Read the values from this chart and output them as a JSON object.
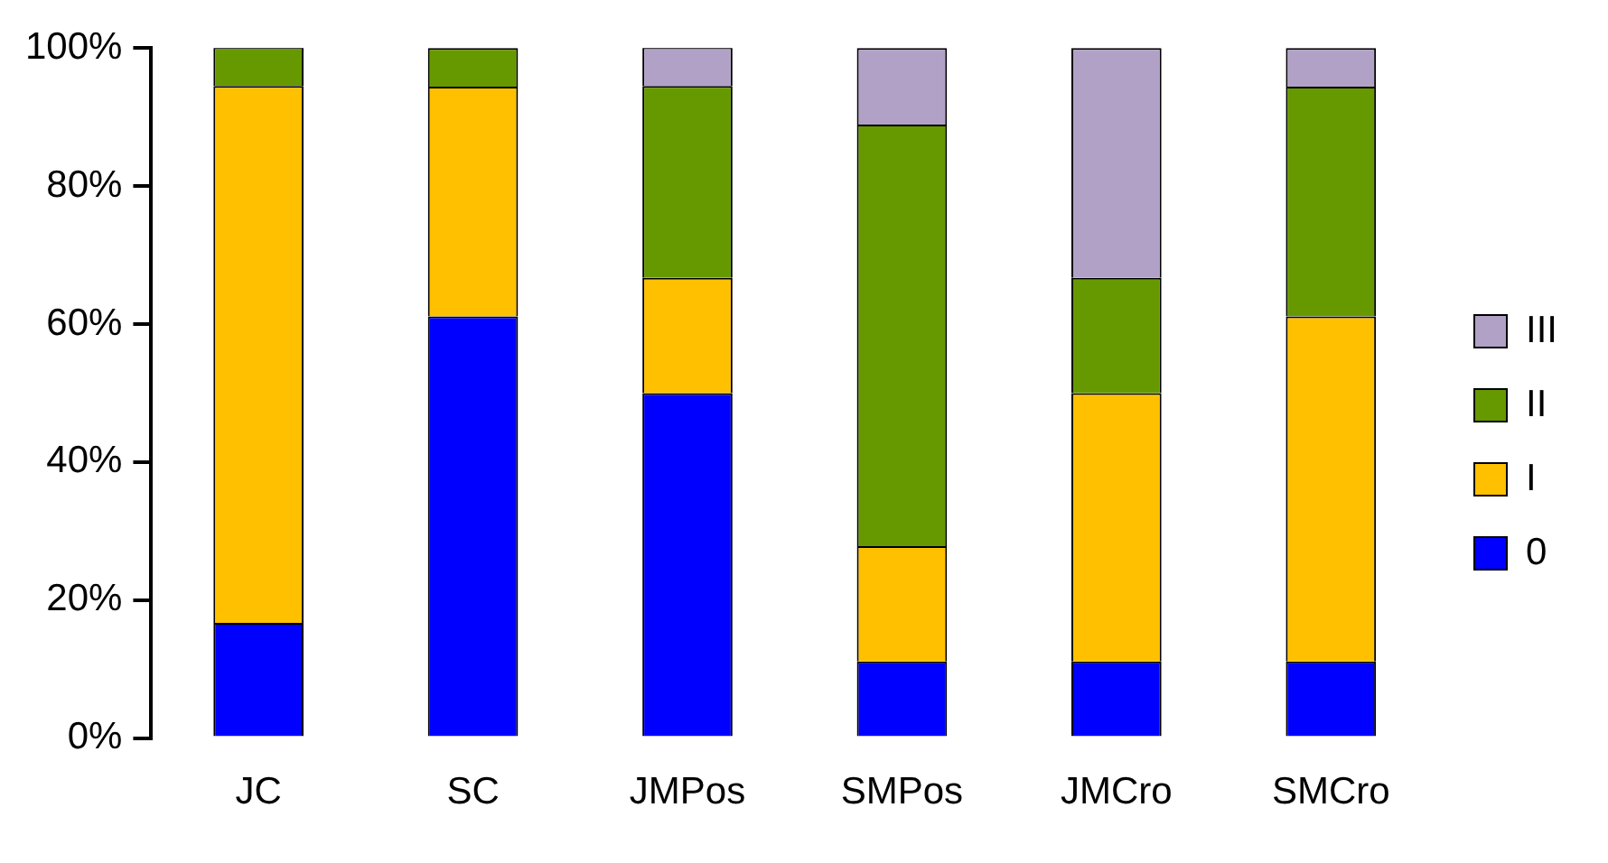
{
  "chart_data": {
    "type": "bar",
    "stacked": true,
    "categories": [
      "JC",
      "SC",
      "JMPos",
      "SMPos",
      "JMCro",
      "SMCro"
    ],
    "series": [
      {
        "name": "0",
        "color": "#0000ff",
        "values": [
          16.7,
          61.1,
          50,
          11.1,
          11.1,
          11.1
        ]
      },
      {
        "name": "I",
        "color": "#ffc000",
        "values": [
          77.8,
          33.3,
          16.7,
          16.7,
          38.9,
          50
        ]
      },
      {
        "name": "II",
        "color": "#669900",
        "values": [
          5.6,
          5.6,
          27.8,
          61.1,
          16.7,
          33.3
        ]
      },
      {
        "name": "III",
        "color": "#b2a1c7",
        "values": [
          0,
          0,
          5.6,
          11.1,
          33.3,
          5.6
        ]
      }
    ],
    "ylim": [
      0,
      100
    ],
    "yticks": [
      {
        "value": 0,
        "label": "0%"
      },
      {
        "value": 20,
        "label": "20%"
      },
      {
        "value": 40,
        "label": "40%"
      },
      {
        "value": 60,
        "label": "60%"
      },
      {
        "value": 80,
        "label": "80%"
      },
      {
        "value": 100,
        "label": "100%"
      }
    ],
    "grid": false,
    "legend": "right"
  }
}
